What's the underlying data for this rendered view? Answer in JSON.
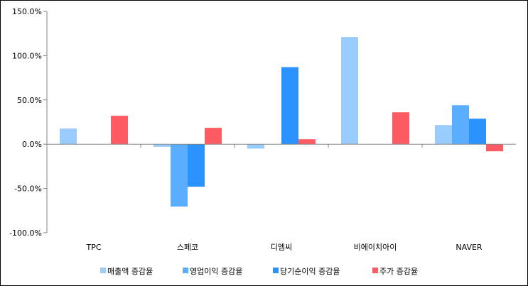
{
  "chart_data": {
    "type": "bar",
    "categories": [
      "TPC",
      "스페코",
      "디엠씨",
      "비에이치아이",
      "NAVER"
    ],
    "series": [
      {
        "name": "매출액 증감율",
        "color": "#99CCFF",
        "values": [
          17.7,
          -3.0,
          -5.0,
          121.0,
          21.6
        ]
      },
      {
        "name": "영업이익 증감율",
        "color": "#5AADFF",
        "values": [
          0,
          -70.4,
          0,
          0,
          44.0
        ]
      },
      {
        "name": "당기순이익 증감율",
        "color": "#2A93FF",
        "values": [
          0,
          -48.0,
          87.0,
          0,
          28.8
        ]
      },
      {
        "name": "주가 증감율",
        "color": "#FF5B62",
        "values": [
          32.1,
          18.5,
          5.6,
          36.0,
          -8.0
        ]
      }
    ],
    "yticks": [
      "-100.0%",
      "-50.0%",
      "0.0%",
      "50.0%",
      "100.0%",
      "150.0%"
    ],
    "ylim": [
      -100,
      150
    ],
    "legend": "bottom",
    "grid": false
  }
}
